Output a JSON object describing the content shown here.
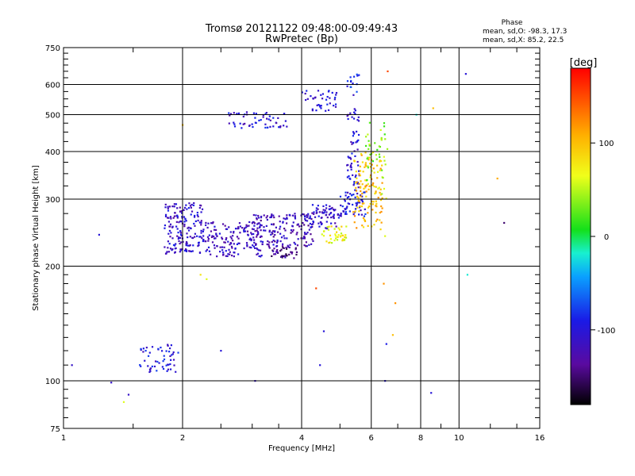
{
  "chart_data": {
    "type": "scatter",
    "title": "Tromsø 20121122 09:48:00-09:49:43",
    "subtitle": "RwPretec (Bp)",
    "xlabel": "Frequency [MHz]",
    "ylabel": "Stationary phase Virtual Height [km]",
    "x_scale": "log",
    "y_scale": "log",
    "xlim": [
      1,
      16
    ],
    "ylim": [
      75,
      750
    ],
    "x_ticks": [
      1,
      2,
      4,
      6,
      8,
      10,
      16
    ],
    "y_ticks": [
      75,
      100,
      200,
      300,
      400,
      500,
      600,
      750
    ],
    "grid": true,
    "stats": {
      "title": "Phase",
      "line_o": "mean, sd,O: -98.3, 17.3",
      "line_x": "mean, sd,X:  85.2, 22.5"
    },
    "colorbar": {
      "label": "[deg]",
      "min": -180,
      "max": 180,
      "ticks": [
        100,
        0,
        -100
      ]
    },
    "series": [
      {
        "type": "cluster",
        "x": [
          1.8,
          2.25
        ],
        "y": [
          215,
          295
        ],
        "phase": -110,
        "n": 170
      },
      {
        "type": "cluster",
        "x": [
          2.25,
          3.2
        ],
        "y": [
          212,
          262
        ],
        "phase": -115,
        "n": 160
      },
      {
        "type": "cluster",
        "x": [
          3.0,
          4.3
        ],
        "y": [
          225,
          275
        ],
        "phase": -120,
        "n": 160
      },
      {
        "type": "cluster",
        "x": [
          3.3,
          3.9
        ],
        "y": [
          210,
          225
        ],
        "phase": -140,
        "n": 40
      },
      {
        "type": "cluster",
        "x": [
          4.2,
          5.0
        ],
        "y": [
          250,
          290
        ],
        "phase": -110,
        "n": 70
      },
      {
        "type": "cluster",
        "x": [
          4.5,
          5.2
        ],
        "y": [
          230,
          255
        ],
        "phase": 70,
        "n": 40
      },
      {
        "type": "cluster",
        "x": [
          5.0,
          5.8
        ],
        "y": [
          270,
          320
        ],
        "phase": -100,
        "n": 60
      },
      {
        "type": "cluster",
        "x": [
          5.2,
          5.6
        ],
        "y": [
          320,
          520
        ],
        "phase": -105,
        "n": 60
      },
      {
        "type": "cluster",
        "x": [
          5.4,
          6.4
        ],
        "y": [
          250,
          400
        ],
        "phase": 100,
        "n": 120
      },
      {
        "type": "cluster",
        "x": [
          5.8,
          6.6
        ],
        "y": [
          300,
          480
        ],
        "phase": 40,
        "n": 50
      },
      {
        "type": "cluster",
        "x": [
          2.6,
          3.7
        ],
        "y": [
          460,
          510
        ],
        "phase": -105,
        "n": 55
      },
      {
        "type": "cluster",
        "x": [
          4.0,
          4.9
        ],
        "y": [
          510,
          580
        ],
        "phase": -100,
        "n": 40
      },
      {
        "type": "cluster",
        "x": [
          5.2,
          5.6
        ],
        "y": [
          560,
          640
        ],
        "phase": -90,
        "n": 15
      },
      {
        "type": "cluster",
        "x": [
          1.55,
          1.95
        ],
        "y": [
          105,
          125
        ],
        "phase": -100,
        "n": 55
      },
      {
        "type": "points",
        "x": [
          1.05,
          1.32,
          1.46,
          1.42,
          3.05,
          2.22,
          1.23,
          2.0,
          4.35,
          4.55,
          6.55,
          6.5,
          6.45,
          6.9,
          6.8,
          8.5,
          8.6,
          10.4,
          10.5,
          12.5,
          13.0,
          2.3,
          2.5,
          4.45,
          7.8,
          6.6,
          6.5
        ],
        "y": [
          110,
          99,
          92,
          88,
          100,
          190,
          242,
          470,
          175,
          135,
          125,
          100,
          180,
          160,
          132,
          93,
          520,
          640,
          190,
          340,
          260,
          185,
          120,
          110,
          500,
          650,
          240
        ],
        "phase": [
          -110,
          -110,
          -110,
          60,
          -110,
          80,
          -100,
          100,
          150,
          -100,
          -90,
          -100,
          120,
          120,
          100,
          -100,
          100,
          -100,
          -20,
          110,
          -150,
          60,
          -100,
          -100,
          -20,
          150,
          60
        ]
      }
    ]
  }
}
